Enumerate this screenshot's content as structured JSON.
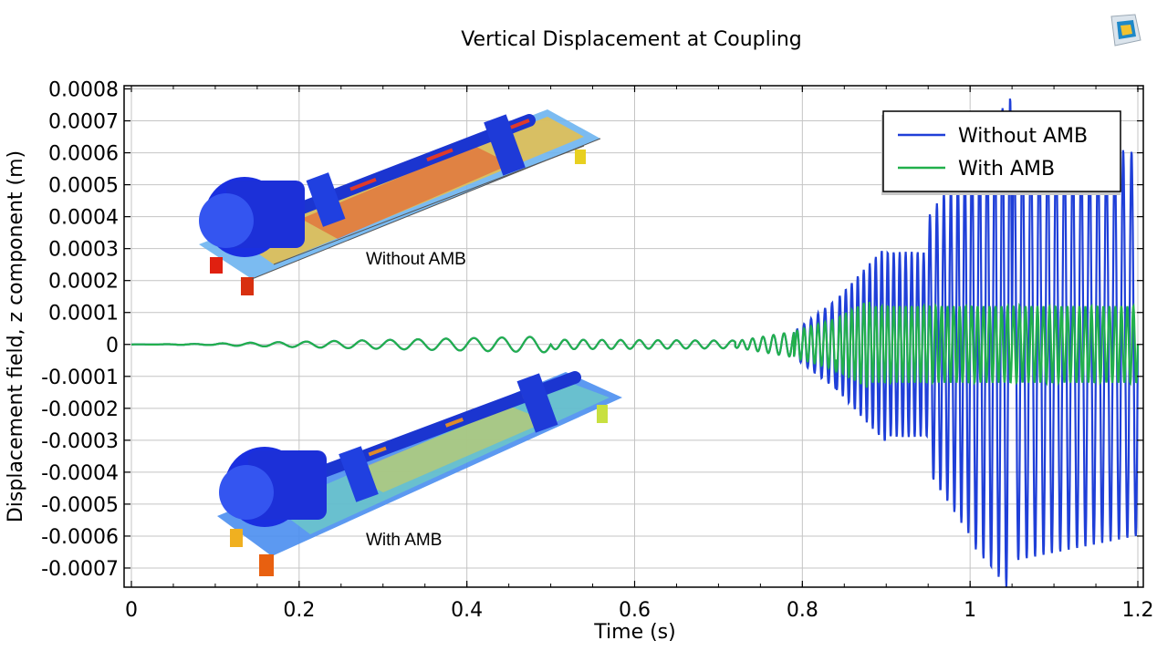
{
  "chart_data": {
    "type": "line",
    "title": "Vertical Displacement at Coupling",
    "xlabel": "Time (s)",
    "ylabel": "Displacement field, z component (m)",
    "xlim": [
      0,
      1.2
    ],
    "ylim": [
      -0.00076,
      0.00081
    ],
    "xticks": [
      0,
      0.2,
      0.4,
      0.6,
      0.8,
      1,
      1.2
    ],
    "xtick_labels": [
      "0",
      "0.2",
      "0.4",
      "0.6",
      "0.8",
      "1",
      "1.2"
    ],
    "yticks": [
      0.0008,
      0.0007,
      0.0006,
      0.0005,
      0.0004,
      0.0003,
      0.0002,
      0.0001,
      0,
      -0.0001,
      -0.0002,
      -0.0003,
      -0.0004,
      -0.0005,
      -0.0006,
      -0.0007
    ],
    "ytick_labels": [
      "0.0008",
      "0.0007",
      "0.0006",
      "0.0005",
      "0.0004",
      "0.0003",
      "0.0002",
      "0.0001",
      "0",
      "-0.0001",
      "-0.0002",
      "-0.0003",
      "-0.0004",
      "-0.0005",
      "-0.0006",
      "-0.0007"
    ],
    "grid": true,
    "legend_position": "top-right",
    "series": [
      {
        "name": "Without AMB",
        "color": "#1f3fd8",
        "segments": [
          {
            "t0": 0.0,
            "t1": 0.1,
            "f": 30,
            "a0": 0.0,
            "a1": 2e-06
          },
          {
            "t0": 0.1,
            "t1": 0.5,
            "f": 30,
            "a0": 3e-06,
            "a1": 2.5e-05
          },
          {
            "t0": 0.5,
            "t1": 0.72,
            "f": 45,
            "a0": 1.5e-05,
            "a1": 1.2e-05
          },
          {
            "t0": 0.72,
            "t1": 0.79,
            "f": 80,
            "a0": 1e-05,
            "a1": 4e-05
          },
          {
            "t0": 0.79,
            "t1": 0.84,
            "f": 120,
            "a0": 4e-05,
            "a1": 0.00014
          },
          {
            "t0": 0.84,
            "t1": 0.9,
            "f": 140,
            "a0": 0.00014,
            "a1": 0.00031
          },
          {
            "t0": 0.9,
            "t1": 0.95,
            "f": 140,
            "a0": 0.00029,
            "a1": 0.00029
          },
          {
            "t0": 0.95,
            "t1": 1.0,
            "f": 120,
            "a0": 0.0004,
            "a1": 0.0006
          },
          {
            "t0": 1.0,
            "t1": 1.05,
            "f": 110,
            "a0": 0.00062,
            "a1": 0.00078
          },
          {
            "t0": 1.05,
            "t1": 1.2,
            "f": 100,
            "a0": 0.00068,
            "a1": 0.0006
          }
        ]
      },
      {
        "name": "With AMB",
        "color": "#22b04b",
        "segments": [
          {
            "t0": 0.0,
            "t1": 0.1,
            "f": 30,
            "a0": 0.0,
            "a1": 2e-06
          },
          {
            "t0": 0.1,
            "t1": 0.5,
            "f": 30,
            "a0": 3e-06,
            "a1": 2.5e-05
          },
          {
            "t0": 0.5,
            "t1": 0.72,
            "f": 45,
            "a0": 1.5e-05,
            "a1": 1.2e-05
          },
          {
            "t0": 0.72,
            "t1": 0.79,
            "f": 80,
            "a0": 1e-05,
            "a1": 4e-05
          },
          {
            "t0": 0.79,
            "t1": 0.84,
            "f": 120,
            "a0": 4e-05,
            "a1": 8e-05
          },
          {
            "t0": 0.84,
            "t1": 0.88,
            "f": 140,
            "a0": 8e-05,
            "a1": 0.00014
          },
          {
            "t0": 0.88,
            "t1": 1.2,
            "f": 140,
            "a0": 0.00012,
            "a1": 0.00012
          }
        ]
      }
    ],
    "annotations": [
      {
        "text": "Without AMB"
      },
      {
        "text": "With AMB"
      }
    ]
  }
}
